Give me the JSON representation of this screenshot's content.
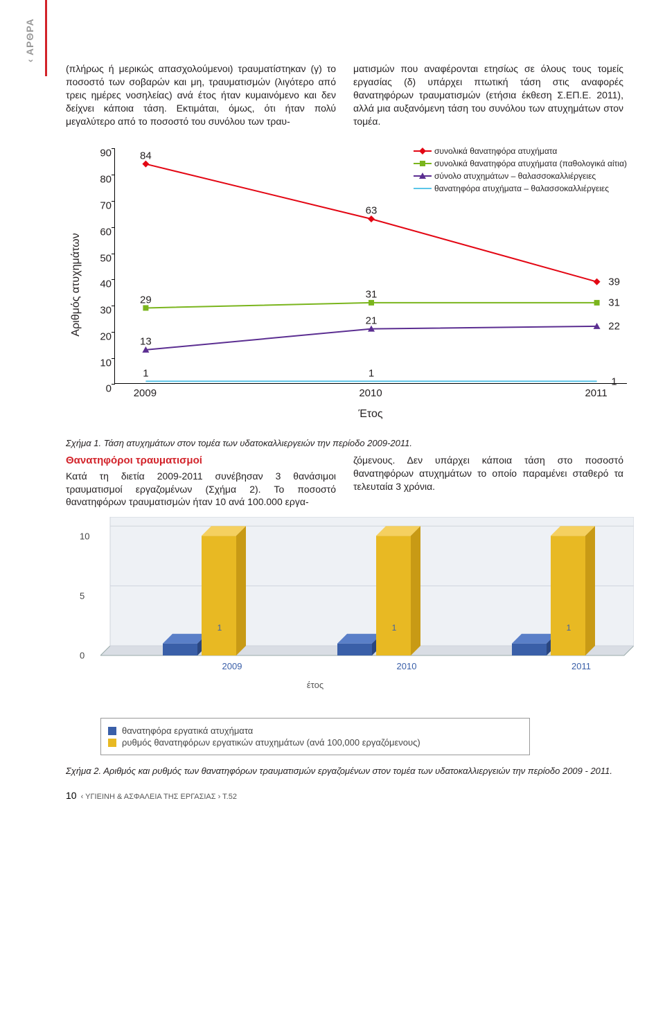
{
  "side_tab": "‹ ΑΡΘΡΑ",
  "para_left": "(πλήρως ή μερικώς απασχολούμενοι) τραυματίστηκαν\n(γ) το ποσοστό των σοβαρών και μη, τραυματισμών (λιγότερο από τρεις ημέρες νοσηλείας) ανά έτος ήταν κυμαινόμενο και δεν δείχνει κάποια τάση. Εκτιμάται, όμως, ότι ήταν πολύ μεγαλύτερο από το ποσοστό του συνόλου των τραυ-",
  "para_right": "ματισμών που αναφέρονται ετησίως σε όλους τους τομείς εργασίας\n(δ) υπάρχει πτωτική τάση στις αναφορές θανατηφόρων τραυματισμών (ετήσια έκθεση Σ.ΕΠ.Ε. 2011), αλλά μια αυξανόμενη τάση του συνόλου των ατυχημάτων στον τομέα.",
  "chart1": {
    "y_label": "Αριθμός ατυχημάτων",
    "x_label": "Έτος",
    "y_ticks": [
      0,
      10,
      20,
      30,
      40,
      50,
      60,
      70,
      80,
      90
    ],
    "x_categories": [
      "2009",
      "2010",
      "2011"
    ],
    "ylim": [
      0,
      90
    ],
    "series": [
      {
        "name": "συνολικά θανατηφόρα ατυχήματα",
        "color": "#e30613",
        "marker": "diamond",
        "values": [
          84,
          63,
          39
        ]
      },
      {
        "name": "συνολικά θανατηφόρα ατυχήματα (παθολογικά αίτια)",
        "color": "#7ab51d",
        "marker": "square",
        "values": [
          29,
          31,
          31
        ]
      },
      {
        "name": "σύνολο ατυχημάτων – θαλασσοκαλλιέργειες",
        "color": "#5b2e91",
        "marker": "triangle",
        "values": [
          13,
          21,
          22
        ]
      },
      {
        "name": "θανατηφόρα ατυχήματα – θαλασσοκαλλιέργειες",
        "color": "#5bc5e8",
        "marker": "none",
        "values": [
          1,
          1,
          1
        ]
      }
    ]
  },
  "caption1": "Σχήμα 1. Τάση ατυχημάτων στον τομέα των υδατοκαλλιεργειών την περίοδο 2009-2011.",
  "subheading": "Θανατηφόροι τραυματισμοί",
  "para2_left": "Κατά τη διετία 2009-2011 συνέβησαν 3 θανάσιμοι τραυματισμοί εργαζομένων (Σχήμα 2). Το ποσοστό θανατηφόρων τραυματισμών ήταν 10 ανά 100.000 εργα-",
  "para2_right": "ζόμενους. Δεν υπάρχει κάποια τάση στο ποσοστό θανατηφόρων ατυχημάτων το οποίο παραμένει σταθερό τα τελευταία 3 χρόνια.",
  "chart2": {
    "y_ticks": [
      0,
      5,
      10
    ],
    "x_categories": [
      "2009",
      "2010",
      "2011"
    ],
    "ylim": [
      0,
      11
    ],
    "x_axis_label": "έτος",
    "series": [
      {
        "name": "θανατηφόρα εργατικά ατυχήματα",
        "fill": "#3a5fa8",
        "side": "#2a4680",
        "top": "#5a7fc8",
        "values": [
          1,
          1,
          1
        ],
        "show_label": true
      },
      {
        "name": "ρυθμός θανατηφόρων εργατικών ατυχημάτων (ανά 100,000 εργαζόμενους)",
        "fill": "#e8b923",
        "side": "#c89a15",
        "top": "#f5d060",
        "values": [
          10,
          10,
          10
        ],
        "show_label": false
      }
    ]
  },
  "caption2": "Σχήμα 2. Αριθμός και ρυθμός των θανατηφόρων τραυματισμών εργαζομένων στον τομέα των υδατοκαλλιεργειών την περίοδο 2009 - 2011.",
  "footer_page": "10",
  "footer_text": "‹ ΥΓΙΕΙΝΗ & ΑΣΦΑΛΕΙΑ ΤΗΣ ΕΡΓΑΣΙΑΣ › Τ.52"
}
